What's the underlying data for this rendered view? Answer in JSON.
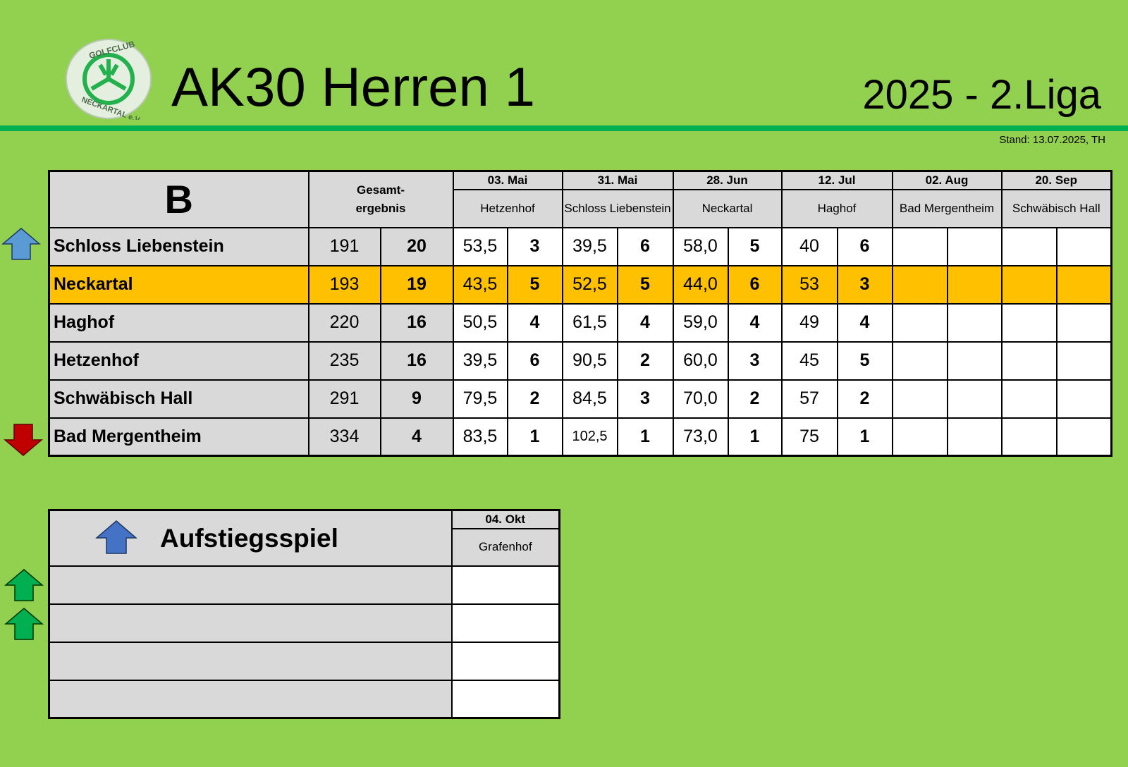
{
  "header": {
    "title": "AK30 Herren 1",
    "season": "2025 - 2.Liga",
    "stand": "Stand: 13.07.2025, TH",
    "logo_text_top": "GOLFCLUB",
    "logo_text_bottom": "NECKARTAL e.V."
  },
  "colors": {
    "background": "#92d050",
    "rule": "#00b050",
    "header_cell": "#d9d9d9",
    "highlight": "#ffc000",
    "up_arrow": "#5b9bd5",
    "down_arrow": "#c00000",
    "green_arrow": "#00b050"
  },
  "table": {
    "group": "B",
    "total_header": "Gesamt-ergebnis",
    "total_header_l1": "Gesamt-",
    "total_header_l2": "ergebnis",
    "rounds": [
      {
        "date": "03. Mai",
        "venue": "Hetzenhof"
      },
      {
        "date": "31. Mai",
        "venue": "Schloss Liebenstein"
      },
      {
        "date": "28. Jun",
        "venue": "Neckartal"
      },
      {
        "date": "12. Jul",
        "venue": "Haghof"
      },
      {
        "date": "02. Aug",
        "venue": "Bad Mergentheim"
      },
      {
        "date": "20. Sep",
        "venue": "Schwäbisch Hall"
      }
    ],
    "rows": [
      {
        "team": "Schloss Liebenstein",
        "strokes": "191",
        "points": "20",
        "results": [
          [
            "53,5",
            "3"
          ],
          [
            "39,5",
            "6"
          ],
          [
            "58,0",
            "5"
          ],
          [
            "40",
            "6"
          ],
          [
            "",
            ""
          ],
          [
            "",
            ""
          ]
        ],
        "marker": "up-blue"
      },
      {
        "team": "Neckartal",
        "strokes": "193",
        "points": "19",
        "results": [
          [
            "43,5",
            "5"
          ],
          [
            "52,5",
            "5"
          ],
          [
            "44,0",
            "6"
          ],
          [
            "53",
            "3"
          ],
          [
            "",
            ""
          ],
          [
            "",
            ""
          ]
        ],
        "highlight": true
      },
      {
        "team": "Haghof",
        "strokes": "220",
        "points": "16",
        "results": [
          [
            "50,5",
            "4"
          ],
          [
            "61,5",
            "4"
          ],
          [
            "59,0",
            "4"
          ],
          [
            "49",
            "4"
          ],
          [
            "",
            ""
          ],
          [
            "",
            ""
          ]
        ]
      },
      {
        "team": "Hetzenhof",
        "strokes": "235",
        "points": "16",
        "results": [
          [
            "39,5",
            "6"
          ],
          [
            "90,5",
            "2"
          ],
          [
            "60,0",
            "3"
          ],
          [
            "45",
            "5"
          ],
          [
            "",
            ""
          ],
          [
            "",
            ""
          ]
        ]
      },
      {
        "team": "Schwäbisch Hall",
        "strokes": "291",
        "points": "9",
        "results": [
          [
            "79,5",
            "2"
          ],
          [
            "84,5",
            "3"
          ],
          [
            "70,0",
            "2"
          ],
          [
            "57",
            "2"
          ],
          [
            "",
            ""
          ],
          [
            "",
            ""
          ]
        ]
      },
      {
        "team": "Bad Mergentheim",
        "strokes": "334",
        "points": "4",
        "results": [
          [
            "83,5",
            "1"
          ],
          [
            "102,5",
            "1"
          ],
          [
            "73,0",
            "1"
          ],
          [
            "75",
            "1"
          ],
          [
            "",
            ""
          ],
          [
            "",
            ""
          ]
        ],
        "marker": "down-red"
      }
    ]
  },
  "promotion": {
    "title": "Aufstiegsspiel",
    "date": "04. Okt",
    "venue": "Grafenhof",
    "rows": [
      "",
      "",
      "",
      ""
    ]
  }
}
